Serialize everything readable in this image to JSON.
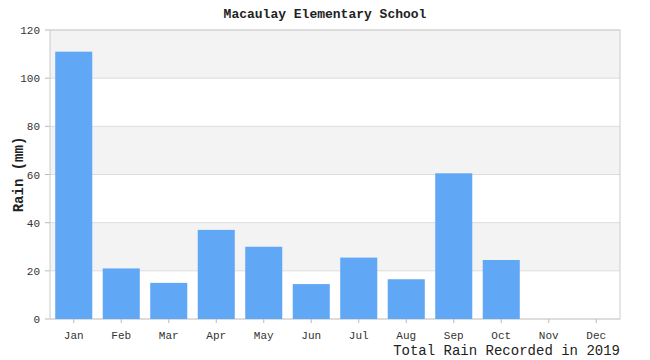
{
  "chart_data": {
    "type": "bar",
    "title": "Macaulay Elementary School",
    "subtitle": "Total Rain Recorded in 2019",
    "y_label": "Rain (mm)",
    "categories": [
      "Jan",
      "Feb",
      "Mar",
      "Apr",
      "May",
      "Jun",
      "Jul",
      "Aug",
      "Sep",
      "Oct",
      "Nov",
      "Dec"
    ],
    "values": [
      111,
      21,
      15,
      37,
      30,
      14.5,
      25.5,
      16.5,
      60.5,
      24.5,
      0,
      0
    ],
    "color": "#60a8f6",
    "ylim": [
      0,
      120
    ],
    "yticks": [
      0,
      20,
      40,
      60,
      80,
      100,
      120
    ],
    "grid": true
  }
}
